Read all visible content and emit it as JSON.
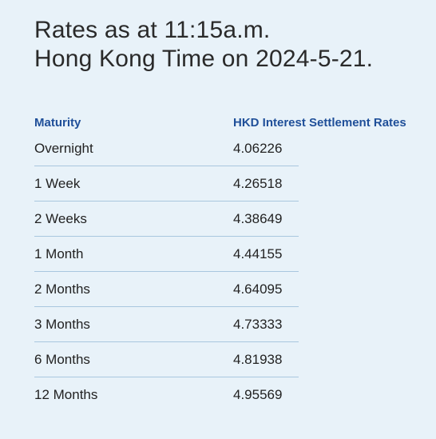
{
  "title": {
    "line1": "Rates as at 11:15a.m.",
    "line2": "Hong Kong Time on 2024-5-21."
  },
  "table": {
    "headers": {
      "maturity": "Maturity",
      "rate": "HKD Interest Settlement Rates"
    },
    "rows": [
      {
        "maturity": "Overnight",
        "rate": "4.06226"
      },
      {
        "maturity": "1 Week",
        "rate": "4.26518"
      },
      {
        "maturity": "2 Weeks",
        "rate": "4.38649"
      },
      {
        "maturity": "1 Month",
        "rate": "4.44155"
      },
      {
        "maturity": "2 Months",
        "rate": "4.64095"
      },
      {
        "maturity": "3 Months",
        "rate": "4.73333"
      },
      {
        "maturity": "6 Months",
        "rate": "4.81938"
      },
      {
        "maturity": "12 Months",
        "rate": "4.95569"
      }
    ]
  },
  "colors": {
    "background": "#e8f2f9",
    "header_text": "#1f4f99",
    "separator": "#a9c7df"
  }
}
